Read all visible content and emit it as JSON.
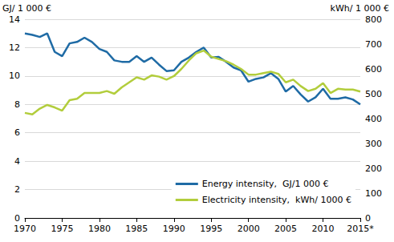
{
  "chart_data": {
    "type": "line",
    "y_label": "GJ/ 1 000 €",
    "y2_label": "kWh/ 1 000 €",
    "categories": [
      "1970",
      null,
      null,
      null,
      null,
      "1975",
      null,
      null,
      null,
      null,
      "1980",
      null,
      null,
      null,
      null,
      "1985",
      null,
      null,
      null,
      null,
      "1990",
      null,
      null,
      null,
      null,
      "1995",
      null,
      null,
      null,
      null,
      "2000",
      null,
      null,
      null,
      null,
      "2005",
      null,
      null,
      null,
      null,
      "2010",
      null,
      null,
      null,
      null,
      "2015*"
    ],
    "series": [
      {
        "name": "Energy intensity,  GJ/1 000 €",
        "color": "#1f6ba5",
        "axis": "y",
        "values": [
          13.0,
          12.9,
          12.75,
          13.0,
          11.7,
          11.4,
          12.3,
          12.4,
          12.7,
          12.4,
          11.9,
          11.7,
          11.1,
          11.0,
          11.0,
          11.4,
          11.0,
          11.3,
          10.8,
          10.35,
          10.4,
          11.0,
          11.3,
          11.7,
          12.0,
          11.3,
          11.35,
          11.0,
          10.6,
          10.4,
          9.6,
          9.8,
          9.9,
          10.2,
          9.8,
          8.9,
          9.3,
          8.7,
          8.2,
          8.5,
          9.1,
          8.4,
          8.4,
          8.5,
          8.35,
          8.0
        ]
      },
      {
        "name": "Electricity intensity,  kWh/ 1000 €",
        "color": "#b2cd3c",
        "axis": "y2",
        "values": [
          423,
          417,
          440,
          455,
          445,
          432,
          474,
          480,
          503,
          503,
          503,
          511,
          500,
          526,
          546,
          566,
          557,
          574,
          569,
          557,
          571,
          600,
          634,
          663,
          674,
          649,
          640,
          631,
          617,
          600,
          577,
          577,
          583,
          589,
          580,
          546,
          557,
          531,
          511,
          520,
          543,
          503,
          520,
          517,
          517,
          509
        ]
      }
    ],
    "ylim": [
      0,
      14
    ],
    "yticks": [
      0,
      2,
      4,
      6,
      8,
      10,
      12,
      14
    ],
    "y2lim": [
      0,
      800
    ],
    "y2ticks": [
      0,
      100,
      200,
      300,
      400,
      500,
      600,
      700,
      800
    ],
    "grid": true,
    "legend": "lower right"
  }
}
